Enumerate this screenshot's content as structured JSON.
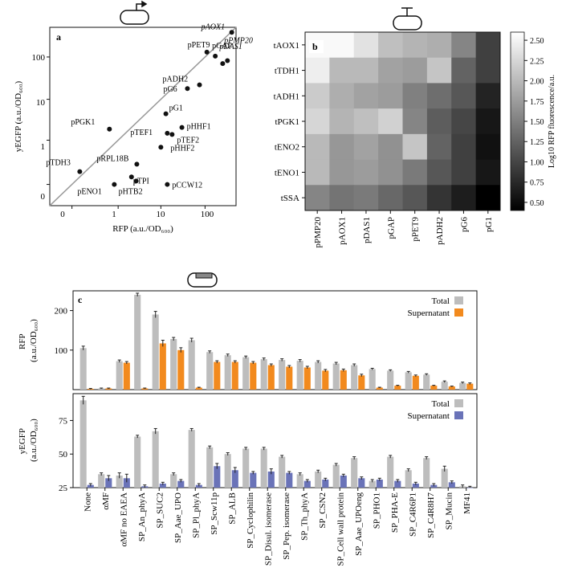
{
  "panel_a": {
    "label": "a",
    "xlabel": "RFP (a.u./OD₆₀₀)",
    "ylabel": "yEGFP (a.u./OD₆₀₀)",
    "x_ticks": [
      "0",
      "1",
      "10",
      "100"
    ],
    "y_ticks": [
      "0",
      "1",
      "10",
      "100"
    ]
  },
  "panel_b": {
    "label": "b",
    "colorbar_label": "Log10 RFP fluorescence/a.u.",
    "colorbar_ticks": [
      "2.50",
      "2.25",
      "2.00",
      "1.75",
      "1.50",
      "1.25",
      "1.00",
      "0.75",
      "0.50"
    ]
  },
  "panel_c": {
    "label": "c",
    "top_ylabel_line1": "RFP",
    "top_ylabel_line2": "(a.u./OD₆₀₀)",
    "bottom_ylabel_line1": "yEGFP",
    "bottom_ylabel_line2": "(a.u./OD₆₀₀)",
    "top_y_ticks": [
      "200",
      "100"
    ],
    "bottom_y_ticks": [
      "75",
      "50",
      "25"
    ],
    "legend_total": "Total",
    "legend_supernatant": "Supernatant"
  },
  "colors": {
    "total": "#bdbdbd",
    "supernatant_rfp": "#f28a1e",
    "supernatant_yegfp": "#6a73b8",
    "diagonal": "#999999"
  },
  "chart_data": [
    {
      "type": "scatter",
      "panel": "a",
      "xscale": "symlog",
      "yscale": "symlog",
      "xlim": [
        -0.5,
        500
      ],
      "ylim": [
        -0.5,
        500
      ],
      "diagonal_line": true,
      "points": [
        {
          "label": "pAOX1",
          "x": 400,
          "y": 380,
          "italic": true
        },
        {
          "label": "pPET9",
          "x": 110,
          "y": 130
        },
        {
          "label": "pGAP",
          "x": 170,
          "y": 105
        },
        {
          "label": "pDAS1",
          "x": 250,
          "y": 70,
          "italic": true
        },
        {
          "label": "pPMP20",
          "x": 320,
          "y": 82,
          "italic": true
        },
        {
          "label": "pADH2",
          "x": 75,
          "y": 22
        },
        {
          "label": "pG6",
          "x": 40,
          "y": 18
        },
        {
          "label": "pG1",
          "x": 13,
          "y": 4.5
        },
        {
          "label": "pHHF1",
          "x": 30,
          "y": 2.1
        },
        {
          "label": "pTEF1",
          "x": 14,
          "y": 1.5
        },
        {
          "label": "pTEF2",
          "x": 18,
          "y": 1.4
        },
        {
          "label": "pPGK1",
          "x": 0.6,
          "y": 1.9
        },
        {
          "label": "pHHF2",
          "x": 10,
          "y": 0.65
        },
        {
          "label": "pTDH3",
          "x": 0.05,
          "y": 0.1
        },
        {
          "label": "pRPL18B",
          "x": 2.8,
          "y": 0.2
        },
        {
          "label": "pTPI",
          "x": 2.1,
          "y": 0.05
        },
        {
          "label": "pHTB2",
          "x": 2.7,
          "y": 0.02
        },
        {
          "label": "pENO1",
          "x": 0.8,
          "y": 0.0
        },
        {
          "label": "pCCW12",
          "x": 14,
          "y": 0.0
        }
      ]
    },
    {
      "type": "heatmap",
      "panel": "b",
      "rows": [
        "tAOX1",
        "tTDH1",
        "tADH1",
        "tPGK1",
        "tENO2",
        "tENO1",
        "tSSA"
      ],
      "cols": [
        "pPMP20",
        "pAOX1",
        "pDAS1",
        "pGAP",
        "pPET9",
        "pADH2",
        "pG6",
        "pG1"
      ],
      "vmin": 0.4,
      "vmax": 2.6,
      "values": [
        [
          2.55,
          2.55,
          2.35,
          2.05,
          1.95,
          1.9,
          1.55,
          0.95
        ],
        [
          2.45,
          2.0,
          2.0,
          1.8,
          1.75,
          2.1,
          1.25,
          0.95
        ],
        [
          2.15,
          1.9,
          1.8,
          1.75,
          1.5,
          1.35,
          1.15,
          0.7
        ],
        [
          2.25,
          1.95,
          2.05,
          2.2,
          1.55,
          1.2,
          1.0,
          0.6
        ],
        [
          2.0,
          1.7,
          1.8,
          1.65,
          2.1,
          1.25,
          0.95,
          0.55
        ],
        [
          2.0,
          1.7,
          1.75,
          1.65,
          1.45,
          1.15,
          0.95,
          0.6
        ],
        [
          1.55,
          1.4,
          1.45,
          1.3,
          1.15,
          0.85,
          0.65,
          0.4
        ]
      ]
    },
    {
      "type": "bar",
      "panel": "c",
      "categories": [
        "None",
        "αMF",
        "αMF no EAEA",
        "SP_An_phyA",
        "SP_SUC2",
        "SP_Aae_UPO",
        "SP_Pl_phyA",
        "SP_Scw11p",
        "SP_ALB",
        "SP_Cyclophilin",
        "SP_Disul. isomerase",
        "SP_Pep. isomerase",
        "SP_Th_phyA",
        "SP_CSN2",
        "SP_Cell wall protein",
        "SP_Aae_UPOeng",
        "SP_PHO1",
        "SP_PHA-E",
        "SP_C4R6P1",
        "SP_C4R8H7",
        "SP_Mucin",
        "MF41"
      ],
      "rfp": {
        "ylim": [
          0,
          250
        ],
        "series": [
          {
            "name": "Total",
            "values": [
              105,
              3,
              72,
              240,
              190,
              128,
              125,
              95,
              87,
              82,
              77,
              75,
              73,
              70,
              66,
              62,
              52,
              48,
              44,
              38,
              20,
              17
            ],
            "err": [
              5,
              1,
              3,
              4,
              8,
              4,
              5,
              3,
              3,
              3,
              3,
              3,
              3,
              3,
              3,
              3,
              2,
              2,
              2,
              2,
              2,
              2
            ]
          },
          {
            "name": "Supernatant",
            "values": [
              2,
              3,
              68,
              3,
              117,
              100,
              5,
              70,
              70,
              68,
              62,
              58,
              56,
              48,
              49,
              36,
              5,
              10,
              35,
              10,
              8,
              15
            ],
            "err": [
              1,
              1,
              3,
              1,
              8,
              6,
              1,
              3,
              3,
              3,
              3,
              3,
              3,
              3,
              3,
              3,
              1,
              1,
              2,
              1,
              1,
              2
            ]
          }
        ]
      },
      "yegfp": {
        "ylim": [
          25,
          95
        ],
        "series": [
          {
            "name": "Total",
            "values": [
              90,
              35,
              34,
              63,
              67,
              35,
              68,
              55,
              50,
              54,
              54,
              48,
              35,
              37,
              42,
              47,
              30,
              48,
              38,
              47,
              39,
              26
            ],
            "err": [
              3,
              1,
              2,
              1,
              2,
              1,
              1,
              1,
              1,
              1,
              1,
              1,
              1,
              1,
              1,
              1,
              1,
              1,
              1,
              1,
              2,
              1
            ]
          },
          {
            "name": "Supernatant",
            "values": [
              27,
              32,
              32,
              26,
              28,
              30,
              27,
              41,
              38,
              36,
              37,
              36,
              30,
              31,
              34,
              32,
              31,
              30,
              28,
              27,
              29,
              25
            ],
            "err": [
              1,
              2,
              3,
              1,
              1,
              1,
              1,
              2,
              2,
              1,
              2,
              1,
              1,
              1,
              1,
              1,
              1,
              1,
              1,
              1,
              1,
              1
            ]
          }
        ]
      }
    }
  ]
}
